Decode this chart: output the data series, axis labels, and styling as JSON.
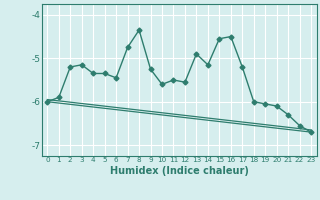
{
  "xlabel": "Humidex (Indice chaleur)",
  "ylabel": "",
  "background_color": "#d6eeee",
  "line_color": "#2e7d6e",
  "grid_color": "#ffffff",
  "xlim": [
    -0.5,
    23.5
  ],
  "ylim": [
    -7.25,
    -3.75
  ],
  "yticks": [
    -7,
    -6,
    -5,
    -4
  ],
  "xticks": [
    0,
    1,
    2,
    3,
    4,
    5,
    6,
    7,
    8,
    9,
    10,
    11,
    12,
    13,
    14,
    15,
    16,
    17,
    18,
    19,
    20,
    21,
    22,
    23
  ],
  "line1_x": [
    0,
    1,
    2,
    3,
    4,
    5,
    6,
    7,
    8,
    9,
    10,
    11,
    12,
    13,
    14,
    15,
    16,
    17,
    18,
    19,
    20,
    21,
    22,
    23
  ],
  "line1_y": [
    -6.0,
    -5.9,
    -5.2,
    -5.15,
    -5.35,
    -5.35,
    -5.45,
    -4.75,
    -4.35,
    -5.25,
    -5.6,
    -5.5,
    -5.55,
    -4.9,
    -5.15,
    -4.55,
    -4.5,
    -5.2,
    -6.0,
    -6.05,
    -6.1,
    -6.3,
    -6.55,
    -6.7
  ],
  "line2_x": [
    0,
    23
  ],
  "line2_y": [
    -5.95,
    -6.65
  ],
  "line3_x": [
    0,
    23
  ],
  "line3_y": [
    -6.0,
    -6.7
  ],
  "marker": "D",
  "markersize": 2.5,
  "linewidth": 1.0
}
